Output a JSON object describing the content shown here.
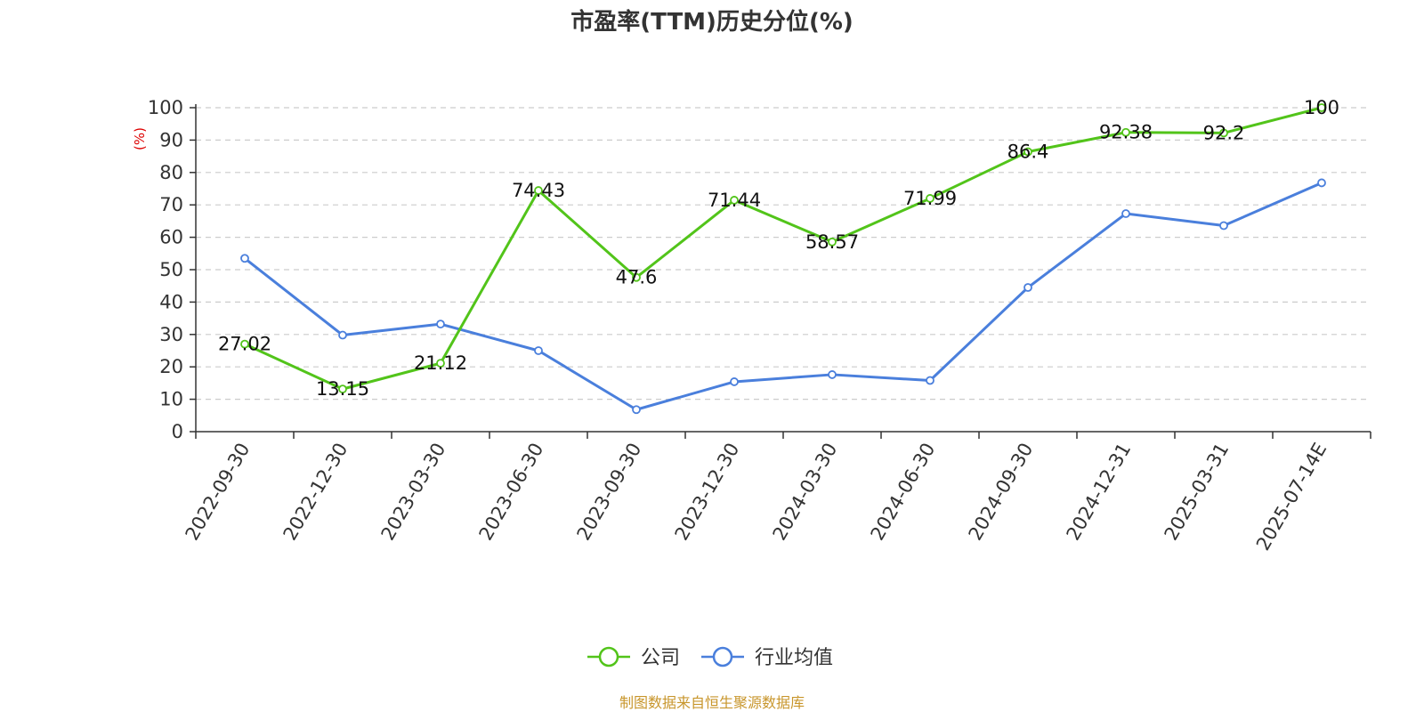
{
  "colors": {
    "company": "#52c41a",
    "industry": "#4a7fdc",
    "ylabel": "#dd0000",
    "source": "#c8962c",
    "grid": "#cccccc",
    "axis": "#333333"
  },
  "chart_data": {
    "type": "line",
    "title": "市盈率(TTM)历史分位(%)",
    "ylabel": "(%)",
    "ylim": [
      0,
      100
    ],
    "yticks": [
      0,
      10,
      20,
      30,
      40,
      50,
      60,
      70,
      80,
      90,
      100
    ],
    "grid": true,
    "legend_position": "bottom",
    "categories": [
      "2022-09-30",
      "2022-12-30",
      "2023-03-30",
      "2023-06-30",
      "2023-09-30",
      "2023-12-30",
      "2024-03-30",
      "2024-06-30",
      "2024-09-30",
      "2024-12-31",
      "2025-03-31",
      "2025-07-14E"
    ],
    "series": [
      {
        "name": "公司",
        "color": "#52c41a",
        "values": [
          27.02,
          13.15,
          21.12,
          74.43,
          47.6,
          71.44,
          58.57,
          71.99,
          86.4,
          92.38,
          92.2,
          100
        ],
        "labels": [
          "27.02",
          "13.15",
          "21.12",
          "74.43",
          "47.6",
          "71.44",
          "58.57",
          "71.99",
          "86.4",
          "92.38",
          "92.2",
          "100"
        ]
      },
      {
        "name": "行业均值",
        "color": "#4a7fdc",
        "values": [
          53.5,
          29.8,
          33.2,
          25.0,
          6.8,
          15.4,
          17.6,
          15.8,
          44.5,
          67.3,
          63.6,
          76.8
        ]
      }
    ]
  },
  "footer": {
    "source": "制图数据来自恒生聚源数据库"
  }
}
